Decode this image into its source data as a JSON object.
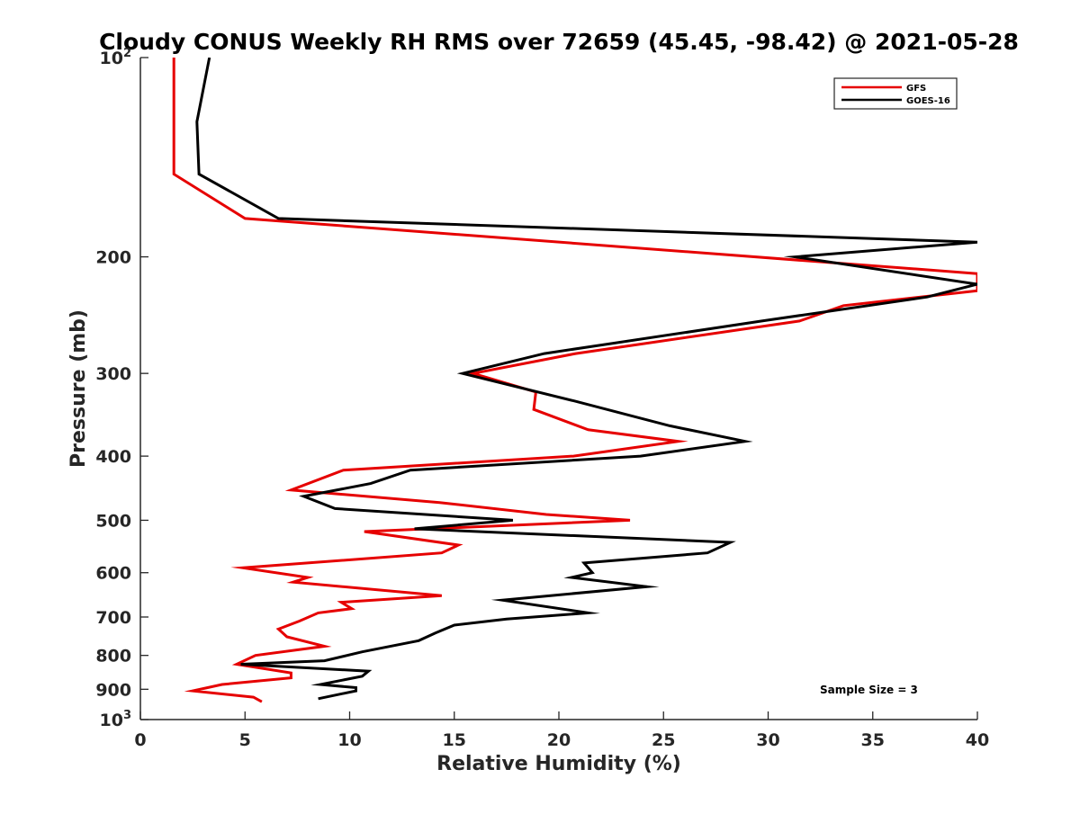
{
  "chart_data": {
    "type": "line",
    "title": "Cloudy CONUS Weekly RH RMS over 72659 (45.45, -98.42) @ 2021-05-28",
    "xlabel": "Relative Humidity (%)",
    "ylabel": "Pressure (mb)",
    "xlim": [
      0,
      40
    ],
    "ylim": [
      100,
      1000
    ],
    "y_scale": "log",
    "y_reversed": true,
    "x_ticks": [
      "0",
      "5",
      "10",
      "15",
      "20",
      "25",
      "30",
      "35",
      "40"
    ],
    "y_ticks": [
      {
        "value": 100,
        "base": "10",
        "exp": "2"
      },
      {
        "value": 200,
        "label": "200"
      },
      {
        "value": 300,
        "label": "300"
      },
      {
        "value": 400,
        "label": "400"
      },
      {
        "value": 500,
        "label": "500"
      },
      {
        "value": 600,
        "label": "600"
      },
      {
        "value": 700,
        "label": "700"
      },
      {
        "value": 800,
        "label": "800"
      },
      {
        "value": 900,
        "label": "900"
      },
      {
        "value": 1000,
        "base": "10",
        "exp": "3"
      }
    ],
    "grid": false,
    "legend_position": "top-right",
    "annotation": "Sample Size = 3",
    "series": [
      {
        "name": "GFS",
        "color": "#e60000",
        "points": [
          [
            1.6,
            100
          ],
          [
            1.6,
            125
          ],
          [
            1.6,
            150
          ],
          [
            5.0,
            175
          ],
          [
            40.0,
            212
          ],
          [
            40.0,
            225
          ],
          [
            33.6,
            237
          ],
          [
            31.5,
            250
          ],
          [
            20.8,
            280
          ],
          [
            15.9,
            300
          ],
          [
            18.9,
            320
          ],
          [
            18.8,
            340
          ],
          [
            21.4,
            365
          ],
          [
            25.7,
            380
          ],
          [
            20.7,
            400
          ],
          [
            9.7,
            420
          ],
          [
            7.2,
            450
          ],
          [
            14.3,
            470
          ],
          [
            19.4,
            490
          ],
          [
            23.4,
            500
          ],
          [
            10.7,
            520
          ],
          [
            15.2,
            545
          ],
          [
            14.4,
            560
          ],
          [
            4.9,
            590
          ],
          [
            8.0,
            610
          ],
          [
            7.3,
            620
          ],
          [
            14.4,
            650
          ],
          [
            9.6,
            665
          ],
          [
            10.1,
            680
          ],
          [
            8.5,
            690
          ],
          [
            7.6,
            710
          ],
          [
            6.6,
            730
          ],
          [
            7.0,
            750
          ],
          [
            8.8,
            775
          ],
          [
            5.5,
            800
          ],
          [
            4.6,
            825
          ],
          [
            7.2,
            850
          ],
          [
            7.2,
            865
          ],
          [
            3.9,
            885
          ],
          [
            2.5,
            905
          ],
          [
            5.4,
            925
          ],
          [
            5.8,
            940
          ]
        ]
      },
      {
        "name": "GOES-16",
        "color": "#000000",
        "points": [
          [
            3.3,
            100
          ],
          [
            2.7,
            125
          ],
          [
            2.8,
            150
          ],
          [
            6.6,
            175
          ],
          [
            40.0,
            190
          ],
          [
            31.3,
            200
          ],
          [
            40.0,
            220
          ],
          [
            37.6,
            230
          ],
          [
            29.7,
            250
          ],
          [
            19.3,
            280
          ],
          [
            15.4,
            300
          ],
          [
            20.7,
            330
          ],
          [
            25.3,
            360
          ],
          [
            28.9,
            380
          ],
          [
            23.9,
            400
          ],
          [
            12.9,
            420
          ],
          [
            11.0,
            440
          ],
          [
            7.8,
            460
          ],
          [
            9.3,
            480
          ],
          [
            17.8,
            500
          ],
          [
            13.1,
            515
          ],
          [
            28.2,
            540
          ],
          [
            27.1,
            560
          ],
          [
            21.2,
            580
          ],
          [
            21.6,
            600
          ],
          [
            20.6,
            610
          ],
          [
            24.2,
            630
          ],
          [
            17.3,
            660
          ],
          [
            21.4,
            690
          ],
          [
            17.5,
            705
          ],
          [
            15.0,
            720
          ],
          [
            14.1,
            740
          ],
          [
            13.3,
            760
          ],
          [
            10.6,
            790
          ],
          [
            8.8,
            815
          ],
          [
            4.8,
            825
          ],
          [
            10.9,
            845
          ],
          [
            10.6,
            860
          ],
          [
            8.6,
            885
          ],
          [
            10.3,
            895
          ],
          [
            10.3,
            905
          ],
          [
            8.5,
            930
          ]
        ]
      }
    ]
  }
}
